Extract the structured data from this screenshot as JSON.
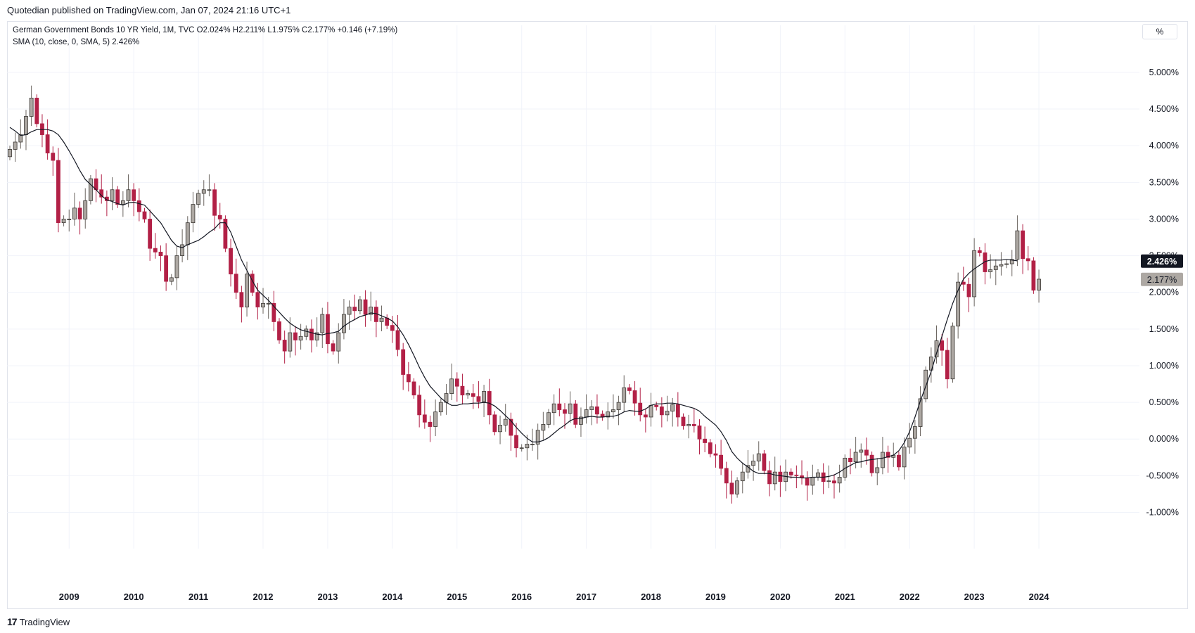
{
  "header": {
    "published": "Quotedian published on TradingView.com, Jan 07, 2024 21:16 UTC+1"
  },
  "legend": {
    "symbol_line": "German Government Bonds 10 YR Yield, 1M, TVC  O2.024%  H2.211%  L1.975%  C2.177%  +0.146 (+7.19%)",
    "sma_line": "SMA (10, close, 0, SMA, 5)  2.426%"
  },
  "scale_button": "%",
  "price_labels": {
    "sma": "2.426%",
    "close": "2.177%"
  },
  "footer": {
    "logo": "17",
    "brand": "TradingView"
  },
  "colors": {
    "up": "#ada8a3",
    "down": "#b22046",
    "sma": "#131722",
    "grid": "#f0f3fa"
  },
  "chart_data": {
    "type": "candlestick",
    "title": "German Government Bonds 10 YR Yield",
    "interval": "1M",
    "y_unit": "%",
    "ylim": [
      -1.35,
      5.45
    ],
    "y_ticks": [
      "5.000%",
      "4.500%",
      "4.000%",
      "3.500%",
      "3.000%",
      "2.500%",
      "2.000%",
      "1.500%",
      "1.000%",
      "0.500%",
      "0.000%",
      "-0.500%",
      "-1.000%"
    ],
    "y_tick_values": [
      5.0,
      4.5,
      4.0,
      3.5,
      3.0,
      2.5,
      2.0,
      1.5,
      1.0,
      0.5,
      0.0,
      -0.5,
      -1.0
    ],
    "x_ticks": [
      "2009",
      "2010",
      "2011",
      "2012",
      "2013",
      "2014",
      "2015",
      "2016",
      "2017",
      "2018",
      "2019",
      "2020",
      "2021",
      "2022",
      "2023",
      "2024"
    ],
    "first_bar": "2008-02",
    "last_bar": "2024-01",
    "close": [
      3.95,
      4.05,
      4.15,
      4.4,
      4.65,
      4.3,
      4.15,
      3.9,
      3.8,
      2.95,
      3.0,
      3.0,
      3.15,
      3.0,
      3.25,
      3.55,
      3.4,
      3.3,
      3.25,
      3.4,
      3.2,
      3.25,
      3.4,
      3.25,
      3.1,
      3.0,
      2.6,
      2.55,
      2.5,
      2.15,
      2.2,
      2.5,
      2.65,
      2.95,
      3.2,
      3.35,
      3.4,
      3.4,
      3.05,
      3.0,
      2.6,
      2.25,
      2.0,
      1.8,
      2.25,
      2.0,
      1.8,
      1.85,
      1.85,
      1.6,
      1.35,
      1.2,
      1.45,
      1.35,
      1.4,
      1.5,
      1.35,
      1.45,
      1.7,
      1.3,
      1.2,
      1.45,
      1.7,
      1.8,
      1.75,
      1.9,
      1.7,
      1.8,
      1.6,
      1.65,
      1.55,
      1.48,
      1.22,
      0.88,
      0.78,
      0.6,
      0.33,
      0.23,
      0.17,
      0.37,
      0.5,
      0.62,
      0.82,
      0.72,
      0.6,
      0.62,
      0.58,
      0.51,
      0.65,
      0.33,
      0.1,
      0.19,
      0.27,
      0.05,
      -0.12,
      -0.12,
      -0.07,
      -0.07,
      0.12,
      0.2,
      0.36,
      0.48,
      0.4,
      0.35,
      0.48,
      0.2,
      0.3,
      0.4,
      0.44,
      0.34,
      0.3,
      0.37,
      0.4,
      0.5,
      0.7,
      0.66,
      0.49,
      0.33,
      0.3,
      0.46,
      0.44,
      0.33,
      0.38,
      0.47,
      0.3,
      0.18,
      0.2,
      0.18,
      0.0,
      -0.05,
      -0.2,
      -0.22,
      -0.4,
      -0.6,
      -0.75,
      -0.57,
      -0.45,
      -0.36,
      -0.3,
      -0.2,
      -0.43,
      -0.61,
      -0.45,
      -0.58,
      -0.45,
      -0.49,
      -0.5,
      -0.53,
      -0.63,
      -0.52,
      -0.46,
      -0.58,
      -0.57,
      -0.6,
      -0.52,
      -0.26,
      -0.31,
      -0.18,
      -0.15,
      -0.22,
      -0.46,
      -0.39,
      -0.18,
      -0.25,
      -0.22,
      -0.38,
      -0.11,
      0.01,
      0.17,
      0.55,
      0.94,
      1.12,
      1.34,
      1.21,
      0.82,
      1.54,
      2.14,
      2.11,
      1.94,
      2.57,
      2.54,
      2.28,
      2.31,
      2.36,
      2.38,
      2.39,
      2.45,
      2.84,
      2.46,
      2.43,
      2.03,
      2.18
    ],
    "sma_10": [
      4.25,
      4.2,
      4.14,
      4.15,
      4.19,
      4.22,
      4.22,
      4.22,
      4.2,
      4.15,
      4.05,
      3.93,
      3.8,
      3.66,
      3.54,
      3.47,
      3.4,
      3.32,
      3.26,
      3.24,
      3.21,
      3.19,
      3.22,
      3.23,
      3.21,
      3.19,
      3.11,
      3.03,
      2.95,
      2.83,
      2.71,
      2.63,
      2.61,
      2.65,
      2.68,
      2.71,
      2.76,
      2.82,
      2.87,
      2.95,
      2.95,
      2.82,
      2.63,
      2.44,
      2.3,
      2.16,
      2.03,
      1.96,
      1.89,
      1.81,
      1.73,
      1.65,
      1.58,
      1.53,
      1.49,
      1.47,
      1.45,
      1.43,
      1.42,
      1.44,
      1.45,
      1.47,
      1.54,
      1.59,
      1.63,
      1.67,
      1.69,
      1.72,
      1.71,
      1.68,
      1.65,
      1.61,
      1.53,
      1.42,
      1.29,
      1.14,
      0.98,
      0.84,
      0.72,
      0.64,
      0.56,
      0.5,
      0.46,
      0.46,
      0.48,
      0.48,
      0.49,
      0.49,
      0.5,
      0.49,
      0.45,
      0.39,
      0.32,
      0.25,
      0.16,
      0.08,
      0.01,
      -0.04,
      -0.04,
      -0.02,
      0.02,
      0.08,
      0.14,
      0.19,
      0.25,
      0.28,
      0.28,
      0.3,
      0.31,
      0.3,
      0.3,
      0.31,
      0.31,
      0.33,
      0.37,
      0.39,
      0.38,
      0.38,
      0.41,
      0.46,
      0.48,
      0.48,
      0.49,
      0.49,
      0.48,
      0.46,
      0.44,
      0.42,
      0.38,
      0.31,
      0.25,
      0.19,
      0.1,
      -0.02,
      -0.17,
      -0.26,
      -0.33,
      -0.38,
      -0.44,
      -0.47,
      -0.47,
      -0.47,
      -0.49,
      -0.5,
      -0.51,
      -0.52,
      -0.52,
      -0.53,
      -0.53,
      -0.52,
      -0.52,
      -0.52,
      -0.51,
      -0.49,
      -0.45,
      -0.4,
      -0.36,
      -0.32,
      -0.31,
      -0.29,
      -0.28,
      -0.27,
      -0.26,
      -0.24,
      -0.22,
      -0.16,
      -0.05,
      0.1,
      0.3,
      0.52,
      0.72,
      0.92,
      1.17,
      1.4,
      1.63,
      1.85,
      2.03,
      2.18,
      2.26,
      2.32,
      2.37,
      2.42,
      2.44,
      2.44,
      2.44,
      2.45,
      2.44,
      2.43
    ]
  }
}
